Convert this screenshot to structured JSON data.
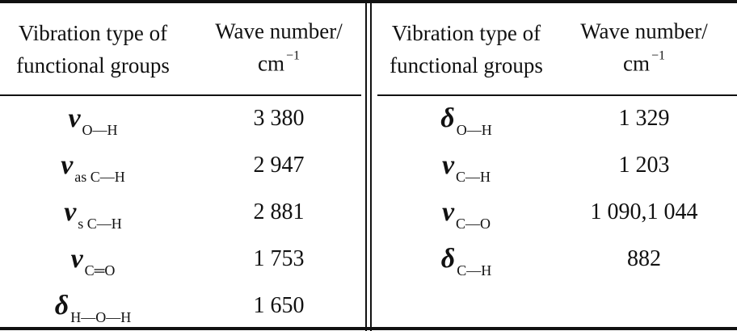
{
  "tables": [
    {
      "header": {
        "col1": [
          "Vibration type of",
          "functional groups"
        ],
        "col2": {
          "line1": "Wave number/",
          "unit": "cm",
          "exponent": "−1"
        }
      },
      "rows": [
        {
          "symbol": "ν",
          "subscript": "O—H",
          "wavenumber": "3 380"
        },
        {
          "symbol": "ν",
          "subscript": "as C—H",
          "wavenumber": "2 947"
        },
        {
          "symbol": "ν",
          "subscript": "s C—H",
          "wavenumber": "2 881"
        },
        {
          "symbol": "ν",
          "subscript": "C═O",
          "wavenumber": "1 753"
        },
        {
          "symbol": "δ",
          "subscript": "H—O—H",
          "wavenumber": "1 650"
        }
      ]
    },
    {
      "header": {
        "col1": [
          "Vibration type of",
          "functional groups"
        ],
        "col2": {
          "line1": "Wave number/",
          "unit": "cm",
          "exponent": "−1"
        }
      },
      "rows": [
        {
          "symbol": "δ",
          "subscript": "O—H",
          "wavenumber": "1 329"
        },
        {
          "symbol": "ν",
          "subscript": "C—H",
          "wavenumber": "1 203"
        },
        {
          "symbol": "ν",
          "subscript": "C—O",
          "wavenumber": "1 090,1 044"
        },
        {
          "symbol": "δ",
          "subscript": "C—H",
          "wavenumber": "882"
        }
      ]
    }
  ]
}
